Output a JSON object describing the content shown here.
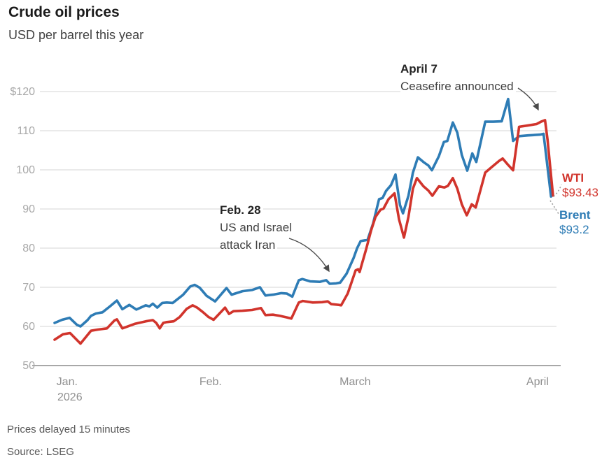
{
  "header": {
    "title": "Crude oil prices",
    "subtitle": "USD per barrel this year"
  },
  "footer": {
    "note": "Prices delayed 15 minutes",
    "source": "Source: LSEG"
  },
  "colors": {
    "wti": "#d1342c",
    "brent": "#2e7cb5",
    "grid": "#d6d6d6",
    "axis": "#8c8c8c",
    "y_tick_text": "#a8a8a8",
    "x_tick_text": "#8f8f8f",
    "arrow": "#4a4a4a",
    "leader_dots": "#9e9e9e"
  },
  "annotations": [
    {
      "date": "Feb. 28",
      "lines": [
        "US and Israel",
        "attack Iran"
      ],
      "arrow_points_to": "Brent line at ~$71 in late February"
    },
    {
      "date": "April 7",
      "lines": [
        "Ceasefire announced"
      ],
      "arrow_points_to": "WTI peak ~$112.7 just before the price drop"
    }
  ],
  "end_labels": {
    "wti": {
      "name": "WTI",
      "value": "$93.43"
    },
    "brent": {
      "name": "Brent",
      "value": "$93.2"
    }
  },
  "chart_data": {
    "type": "line",
    "title": "Crude oil prices",
    "subtitle": "USD per barrel this year",
    "ylabel": "USD per barrel",
    "x_unit": "calendar day of 2026 (0 = Jan 1, ~100 = Apr 10)",
    "xlim": [
      0,
      100
    ],
    "ylim": [
      50,
      120
    ],
    "grid": true,
    "legend_position": "end-of-line labels at right",
    "y_ticks": [
      {
        "value": 120,
        "label": "$120"
      },
      {
        "value": 110,
        "label": "110"
      },
      {
        "value": 100,
        "label": "100"
      },
      {
        "value": 90,
        "label": "90"
      },
      {
        "value": 80,
        "label": "80"
      },
      {
        "value": 70,
        "label": "70"
      },
      {
        "value": 60,
        "label": "60"
      },
      {
        "value": 50,
        "label": "50"
      }
    ],
    "x_ticks": [
      {
        "day": 2.5,
        "label": "Jan.",
        "sublabel": "2026"
      },
      {
        "day": 31.3,
        "label": "Feb."
      },
      {
        "day": 60.3,
        "label": "March"
      },
      {
        "day": 96.9,
        "label": "April"
      }
    ],
    "series": [
      {
        "name": "Brent",
        "color": "#2e7cb5",
        "final_value": 93.2,
        "points": [
          [
            0,
            60.9
          ],
          [
            1.5,
            61.7
          ],
          [
            3,
            62.2
          ],
          [
            4.5,
            60.4
          ],
          [
            5.2,
            60.0
          ],
          [
            6.6,
            61.6
          ],
          [
            7.3,
            62.7
          ],
          [
            8.3,
            63.3
          ],
          [
            9.6,
            63.6
          ],
          [
            11.1,
            65.1
          ],
          [
            12.5,
            66.6
          ],
          [
            13.6,
            64.4
          ],
          [
            15,
            65.5
          ],
          [
            16.4,
            64.3
          ],
          [
            18.3,
            65.4
          ],
          [
            19,
            65.1
          ],
          [
            19.7,
            65.8
          ],
          [
            20.6,
            64.8
          ],
          [
            21.6,
            66.0
          ],
          [
            22.5,
            66.1
          ],
          [
            23.7,
            66.0
          ],
          [
            24.9,
            67.2
          ],
          [
            25.8,
            68.1
          ],
          [
            27.2,
            70.2
          ],
          [
            28.1,
            70.6
          ],
          [
            29.1,
            69.9
          ],
          [
            30.5,
            67.8
          ],
          [
            32.2,
            66.4
          ],
          [
            34.5,
            69.8
          ],
          [
            35.5,
            68.1
          ],
          [
            37.7,
            69.0
          ],
          [
            39.6,
            69.3
          ],
          [
            41.2,
            70.0
          ],
          [
            42.3,
            67.9
          ],
          [
            43.8,
            68.1
          ],
          [
            45.5,
            68.5
          ],
          [
            46.6,
            68.4
          ],
          [
            47.7,
            67.6
          ],
          [
            49,
            71.8
          ],
          [
            49.7,
            72.1
          ],
          [
            51.3,
            71.5
          ],
          [
            53.2,
            71.4
          ],
          [
            54.5,
            71.8
          ],
          [
            55.2,
            70.9
          ],
          [
            56.5,
            71.0
          ],
          [
            57.3,
            71.2
          ],
          [
            58.6,
            73.5
          ],
          [
            60,
            77.5
          ],
          [
            60.7,
            80.0
          ],
          [
            61.4,
            81.8
          ],
          [
            62.8,
            82.1
          ],
          [
            63.9,
            86.3
          ],
          [
            65.1,
            92.5
          ],
          [
            65.8,
            92.8
          ],
          [
            66.5,
            94.6
          ],
          [
            67.5,
            96.1
          ],
          [
            68.4,
            98.8
          ],
          [
            69.3,
            91.0
          ],
          [
            69.9,
            88.9
          ],
          [
            71,
            93.4
          ],
          [
            71.9,
            99.3
          ],
          [
            72.9,
            103.2
          ],
          [
            74,
            102.0
          ],
          [
            75,
            101.1
          ],
          [
            75.7,
            99.9
          ],
          [
            77.1,
            103.5
          ],
          [
            78.1,
            107.1
          ],
          [
            78.8,
            107.4
          ],
          [
            79.9,
            112.1
          ],
          [
            80.8,
            109.5
          ],
          [
            81.7,
            103.8
          ],
          [
            82.8,
            99.8
          ],
          [
            83.8,
            104.2
          ],
          [
            84.6,
            102.0
          ],
          [
            86.4,
            112.3
          ],
          [
            88,
            112.3
          ],
          [
            89.7,
            112.4
          ],
          [
            91,
            118.1
          ],
          [
            92,
            107.4
          ],
          [
            93.2,
            108.6
          ],
          [
            95,
            108.8
          ],
          [
            97.4,
            109.0
          ],
          [
            98.1,
            109.2
          ],
          [
            99.6,
            93.2
          ]
        ]
      },
      {
        "name": "WTI",
        "color": "#d1342c",
        "final_value": 93.43,
        "points": [
          [
            0,
            56.6
          ],
          [
            1.7,
            58.0
          ],
          [
            3.1,
            58.3
          ],
          [
            5.2,
            55.6
          ],
          [
            7.3,
            58.9
          ],
          [
            8.7,
            59.2
          ],
          [
            10.5,
            59.5
          ],
          [
            12,
            61.5
          ],
          [
            12.5,
            61.8
          ],
          [
            13.6,
            59.5
          ],
          [
            16.2,
            60.7
          ],
          [
            18.3,
            61.3
          ],
          [
            19.7,
            61.6
          ],
          [
            20.4,
            60.9
          ],
          [
            21.1,
            59.5
          ],
          [
            21.8,
            60.9
          ],
          [
            22.5,
            61.1
          ],
          [
            23.9,
            61.3
          ],
          [
            25.1,
            62.4
          ],
          [
            26.5,
            64.5
          ],
          [
            27.7,
            65.4
          ],
          [
            28.6,
            64.8
          ],
          [
            29.8,
            63.6
          ],
          [
            30.9,
            62.4
          ],
          [
            31.9,
            61.7
          ],
          [
            34.2,
            64.8
          ],
          [
            35,
            63.2
          ],
          [
            35.9,
            63.9
          ],
          [
            37.7,
            64.0
          ],
          [
            39.6,
            64.2
          ],
          [
            41.4,
            64.7
          ],
          [
            42.3,
            62.9
          ],
          [
            43.8,
            63.0
          ],
          [
            45.2,
            62.7
          ],
          [
            46.6,
            62.3
          ],
          [
            47.5,
            62.0
          ],
          [
            49,
            66.1
          ],
          [
            49.8,
            66.5
          ],
          [
            51.8,
            66.1
          ],
          [
            53.7,
            66.2
          ],
          [
            54.8,
            66.4
          ],
          [
            55.5,
            65.7
          ],
          [
            57,
            65.5
          ],
          [
            57.5,
            65.4
          ],
          [
            58.8,
            68.4
          ],
          [
            59.3,
            70.2
          ],
          [
            60.4,
            74.3
          ],
          [
            60.9,
            74.6
          ],
          [
            61.2,
            73.9
          ],
          [
            62.5,
            79.7
          ],
          [
            63.5,
            84.5
          ],
          [
            64.4,
            88.0
          ],
          [
            65.4,
            89.8
          ],
          [
            66,
            90.1
          ],
          [
            67,
            92.5
          ],
          [
            68.2,
            94.0
          ],
          [
            69.1,
            87.4
          ],
          [
            70.1,
            82.7
          ],
          [
            71,
            88.0
          ],
          [
            71.9,
            95.2
          ],
          [
            72.7,
            97.9
          ],
          [
            74,
            95.8
          ],
          [
            75,
            94.7
          ],
          [
            75.8,
            93.4
          ],
          [
            77.1,
            95.8
          ],
          [
            78.2,
            95.5
          ],
          [
            78.9,
            95.9
          ],
          [
            79.9,
            97.9
          ],
          [
            80.8,
            95.2
          ],
          [
            81.7,
            91.2
          ],
          [
            82.7,
            88.4
          ],
          [
            83.7,
            91.2
          ],
          [
            84.5,
            90.4
          ],
          [
            86.4,
            99.3
          ],
          [
            87.8,
            100.8
          ],
          [
            89.2,
            102.3
          ],
          [
            89.9,
            102.9
          ],
          [
            90.9,
            101.4
          ],
          [
            92,
            99.9
          ],
          [
            93.2,
            111.0
          ],
          [
            94.8,
            111.3
          ],
          [
            96.7,
            111.7
          ],
          [
            97.6,
            112.3
          ],
          [
            98.4,
            112.7
          ],
          [
            98.9,
            107.7
          ],
          [
            100,
            93.43
          ]
        ]
      }
    ]
  }
}
